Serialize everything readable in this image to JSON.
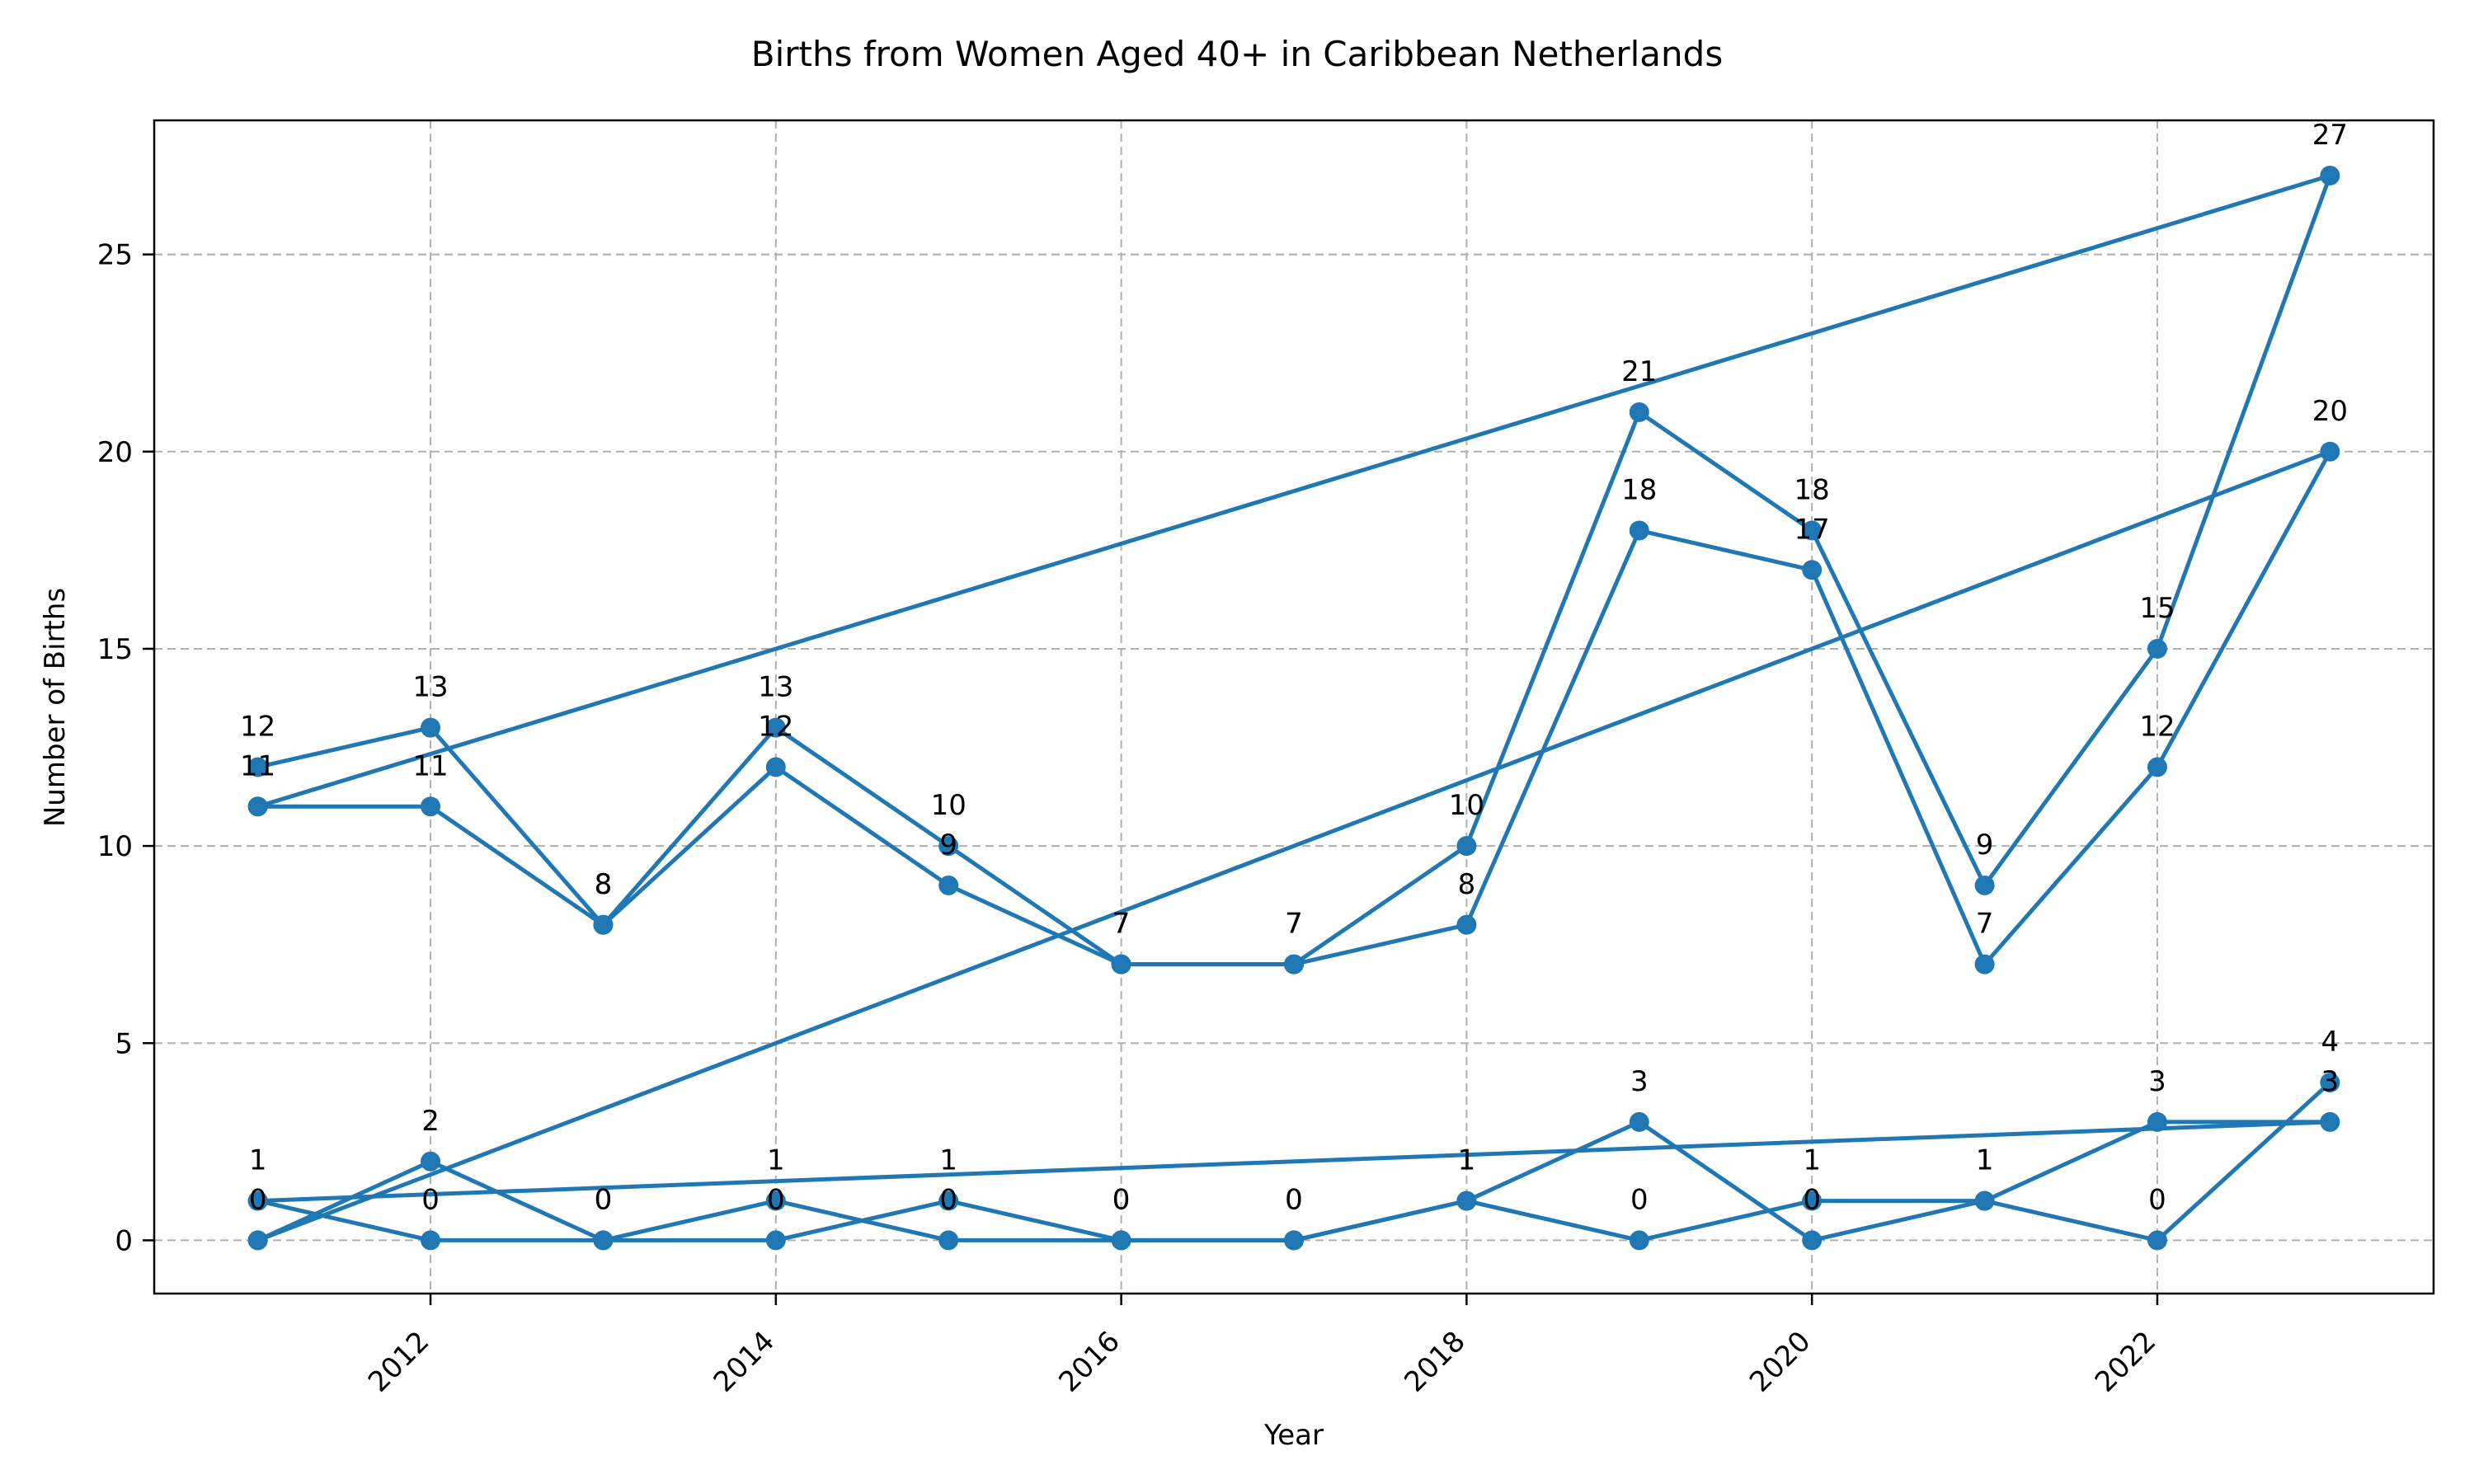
{
  "chart_data": {
    "type": "line",
    "title": "Births from Women Aged 40+ in Caribbean Netherlands",
    "xlabel": "Year",
    "ylabel": "Number of Births",
    "xlim": [
      2010.4,
      2023.6
    ],
    "ylim": [
      -1.35,
      28.4
    ],
    "x_ticks": [
      2012,
      2014,
      2016,
      2018,
      2020,
      2022
    ],
    "y_ticks": [
      0,
      5,
      10,
      15,
      20,
      25
    ],
    "grid": true,
    "color": "#1f77b4",
    "series": [
      {
        "points": [
          [
            2011,
            12
          ],
          [
            2012,
            13
          ],
          [
            2013,
            8
          ],
          [
            2014,
            13
          ],
          [
            2015,
            10
          ],
          [
            2016,
            7
          ],
          [
            2017,
            7
          ],
          [
            2018,
            10
          ],
          [
            2019,
            21
          ],
          [
            2020,
            18
          ],
          [
            2021,
            9
          ],
          [
            2022,
            15
          ],
          [
            2023,
            27
          ],
          [
            2011,
            11
          ]
        ],
        "labels": [
          "12",
          "13",
          "8",
          "13",
          "10",
          "7",
          "7",
          "10",
          "21",
          "18",
          "9",
          "15",
          "27",
          ""
        ]
      },
      {
        "points": [
          [
            2011,
            11
          ],
          [
            2012,
            11
          ],
          [
            2013,
            8
          ],
          [
            2014,
            12
          ],
          [
            2015,
            9
          ],
          [
            2016,
            7
          ],
          [
            2017,
            7
          ],
          [
            2018,
            8
          ],
          [
            2019,
            18
          ],
          [
            2020,
            17
          ],
          [
            2021,
            7
          ],
          [
            2022,
            12
          ],
          [
            2023,
            20
          ],
          [
            2011,
            0
          ]
        ],
        "labels": [
          "11",
          "11",
          "8",
          "12",
          "9",
          "7",
          "7",
          "8",
          "18",
          "17",
          "7",
          "12",
          "20",
          ""
        ]
      },
      {
        "points": [
          [
            2011,
            1
          ],
          [
            2012,
            0
          ],
          [
            2013,
            0
          ],
          [
            2014,
            1
          ],
          [
            2015,
            0
          ],
          [
            2016,
            0
          ],
          [
            2017,
            0
          ],
          [
            2018,
            1
          ],
          [
            2019,
            0
          ],
          [
            2020,
            1
          ],
          [
            2021,
            1
          ],
          [
            2022,
            3
          ],
          [
            2023,
            3
          ],
          [
            2011,
            1
          ]
        ],
        "labels": [
          "1",
          "0",
          "0",
          "1",
          "0",
          "0",
          "0",
          "1",
          "0",
          "1",
          "1",
          "3",
          "3",
          ""
        ]
      },
      {
        "points": [
          [
            2011,
            0
          ],
          [
            2012,
            2
          ],
          [
            2013,
            0
          ],
          [
            2014,
            0
          ],
          [
            2015,
            1
          ],
          [
            2016,
            0
          ],
          [
            2017,
            0
          ],
          [
            2018,
            1
          ],
          [
            2019,
            3
          ],
          [
            2020,
            0
          ],
          [
            2021,
            1
          ],
          [
            2022,
            0
          ],
          [
            2023,
            4
          ]
        ],
        "labels": [
          "0",
          "2",
          "0",
          "0",
          "1",
          "0",
          "0",
          "1",
          "3",
          "0",
          "1",
          "0",
          "4"
        ]
      }
    ]
  }
}
